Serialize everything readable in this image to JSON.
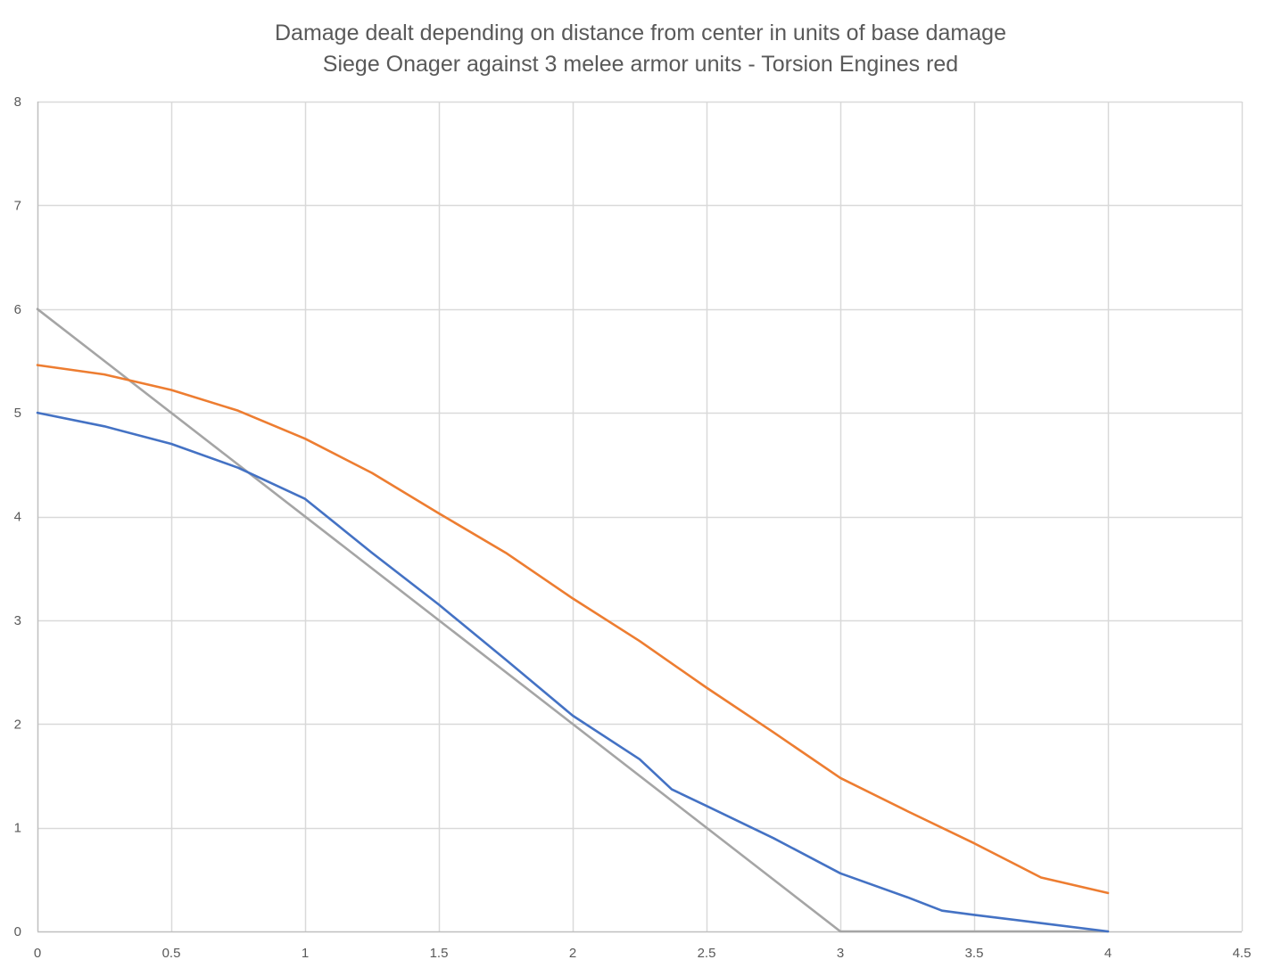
{
  "chart_data": {
    "type": "line",
    "title": "Damage dealt depending on distance from center in units of base damage",
    "subtitle": "Siege Onager against 3 melee armor units - Torsion Engines red",
    "xlabel": "",
    "ylabel": "",
    "xlim": [
      0,
      4.5
    ],
    "ylim": [
      0,
      8
    ],
    "x_ticks": [
      "0",
      "0.5",
      "1",
      "1.5",
      "2",
      "2.5",
      "3",
      "3.5",
      "4",
      "4.5"
    ],
    "y_ticks": [
      "0",
      "1",
      "2",
      "3",
      "4",
      "5",
      "6",
      "7",
      "8"
    ],
    "grid": true,
    "legend": "none",
    "series": [
      {
        "color": "#4472C4",
        "x": [
          0,
          0.25,
          0.5,
          0.75,
          1,
          1.25,
          1.5,
          1.75,
          2,
          2.25,
          2.37,
          2.5,
          2.75,
          3,
          3.25,
          3.38,
          3.5,
          3.75,
          4
        ],
        "y": [
          5.0,
          4.87,
          4.7,
          4.47,
          4.17,
          3.65,
          3.15,
          2.62,
          2.08,
          1.66,
          1.37,
          1.21,
          0.9,
          0.56,
          0.33,
          0.2,
          0.16,
          0.08,
          0.0
        ]
      },
      {
        "color": "#ED7D31",
        "x": [
          0,
          0.25,
          0.5,
          0.75,
          1,
          1.25,
          1.5,
          1.75,
          2,
          2.25,
          2.5,
          2.75,
          3,
          3.25,
          3.5,
          3.75,
          4
        ],
        "y": [
          5.46,
          5.37,
          5.22,
          5.02,
          4.75,
          4.42,
          4.03,
          3.65,
          3.21,
          2.8,
          2.35,
          1.92,
          1.48,
          1.16,
          0.85,
          0.52,
          0.37
        ]
      },
      {
        "color": "#A5A5A5",
        "x": [
          0,
          3,
          4
        ],
        "y": [
          6.0,
          0.0,
          0.0
        ]
      }
    ]
  }
}
